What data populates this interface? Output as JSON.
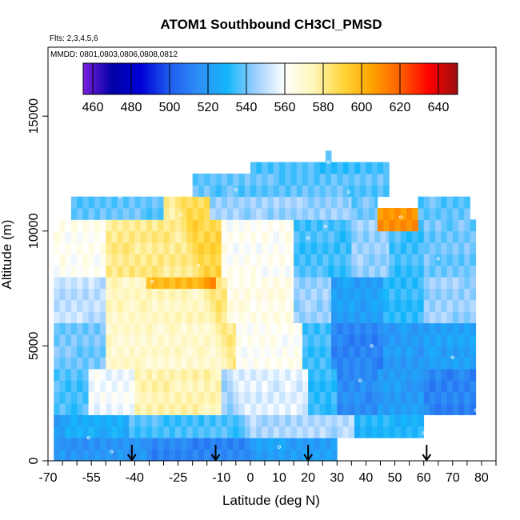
{
  "chart_data": {
    "type": "heatmap",
    "title": "ATOM1 Southbound CH3Cl_PMSD",
    "subtitle_flights": "Flts: 2,3,4,5,6",
    "subtitle_dates": "MMDD: 0801,0803,0806,0808,0812",
    "xlabel": "Latitude (deg N)",
    "ylabel": "Altitude (m)",
    "xlim": [
      -70,
      85
    ],
    "ylim": [
      0,
      18000
    ],
    "x_tick_labels": [
      "-70",
      "-55",
      "-40",
      "-25",
      "-10",
      "0",
      "10",
      "20",
      "30",
      "40",
      "50",
      "60",
      "70",
      "80"
    ],
    "x_tick_values": [
      -70,
      -55,
      -40,
      -25,
      -10,
      0,
      10,
      20,
      30,
      40,
      50,
      60,
      70,
      80
    ],
    "y_tick_labels": [
      "0",
      "5000",
      "10000",
      "15000"
    ],
    "y_tick_values": [
      0,
      5000,
      10000,
      15000
    ],
    "colorbar": {
      "range": [
        455,
        650
      ],
      "tick_labels": [
        "460",
        "480",
        "500",
        "520",
        "540",
        "560",
        "580",
        "600",
        "620",
        "640"
      ],
      "tick_values": [
        460,
        480,
        500,
        520,
        540,
        560,
        580,
        600,
        620,
        640
      ],
      "colors": [
        "#7a1fdd",
        "#0000a6",
        "#0000d6",
        "#1f5cf0",
        "#2e8ef5",
        "#14b6fb",
        "#9ecfff",
        "#ffffff",
        "#fff6b8",
        "#ffd63c",
        "#ffa400",
        "#ff6000",
        "#ff0000",
        "#9a1010"
      ]
    },
    "flight_latitude_markers": [
      -41,
      -12,
      20,
      61
    ],
    "lat_bin_deg": 2,
    "alt_bin_m": 500,
    "grid": [
      {
        "lat": [
          -68,
          -64
        ],
        "alt": [
          0,
          2000
        ],
        "value": 530
      },
      {
        "lat": [
          -64,
          -36
        ],
        "alt": [
          0,
          1000
        ],
        "value": 527
      },
      {
        "lat": [
          -36,
          30
        ],
        "alt": [
          0,
          1000
        ],
        "value": 522
      },
      {
        "lat": [
          -64,
          -42
        ],
        "alt": [
          1000,
          2000
        ],
        "value": 536
      },
      {
        "lat": [
          -42,
          0
        ],
        "alt": [
          1000,
          2000
        ],
        "value": 545
      },
      {
        "lat": [
          0,
          36
        ],
        "alt": [
          1000,
          2000
        ],
        "value": 548
      },
      {
        "lat": [
          36,
          60
        ],
        "alt": [
          1000,
          2000
        ],
        "value": 530
      },
      {
        "lat": [
          -68,
          -56
        ],
        "alt": [
          2000,
          4000
        ],
        "value": 545
      },
      {
        "lat": [
          -56,
          -40
        ],
        "alt": [
          2000,
          4000
        ],
        "value": 568
      },
      {
        "lat": [
          -40,
          -10
        ],
        "alt": [
          2000,
          4000
        ],
        "value": 585
      },
      {
        "lat": [
          -10,
          20
        ],
        "alt": [
          2000,
          4000
        ],
        "value": 555
      },
      {
        "lat": [
          20,
          30
        ],
        "alt": [
          2000,
          4000
        ],
        "value": 532
      },
      {
        "lat": [
          30,
          44
        ],
        "alt": [
          2000,
          4000
        ],
        "value": 515
      },
      {
        "lat": [
          44,
          60
        ],
        "alt": [
          2000,
          4000
        ],
        "value": 520
      },
      {
        "lat": [
          60,
          78
        ],
        "alt": [
          2000,
          4000
        ],
        "value": 512
      },
      {
        "lat": [
          -68,
          -50
        ],
        "alt": [
          4000,
          6000
        ],
        "value": 550
      },
      {
        "lat": [
          -50,
          -5
        ],
        "alt": [
          4000,
          6000
        ],
        "value": 580
      },
      {
        "lat": [
          -5,
          18
        ],
        "alt": [
          4000,
          6000
        ],
        "value": 562
      },
      {
        "lat": [
          18,
          28
        ],
        "alt": [
          4000,
          6000
        ],
        "value": 535
      },
      {
        "lat": [
          28,
          46
        ],
        "alt": [
          4000,
          6000
        ],
        "value": 512
      },
      {
        "lat": [
          46,
          60
        ],
        "alt": [
          4000,
          6000
        ],
        "value": 520
      },
      {
        "lat": [
          60,
          78
        ],
        "alt": [
          4000,
          6000
        ],
        "value": 522
      },
      {
        "lat": [
          -68,
          -50
        ],
        "alt": [
          6000,
          8000
        ],
        "value": 560
      },
      {
        "lat": [
          -50,
          -8
        ],
        "alt": [
          6000,
          8000
        ],
        "value": 582
      },
      {
        "lat": [
          -8,
          15
        ],
        "alt": [
          6000,
          8000
        ],
        "value": 565
      },
      {
        "lat": [
          15,
          28
        ],
        "alt": [
          6000,
          8000
        ],
        "value": 545
      },
      {
        "lat": [
          28,
          46
        ],
        "alt": [
          6000,
          8000
        ],
        "value": 522
      },
      {
        "lat": [
          46,
          60
        ],
        "alt": [
          6000,
          8000
        ],
        "value": 532
      },
      {
        "lat": [
          60,
          78
        ],
        "alt": [
          6000,
          8000
        ],
        "value": 545
      },
      {
        "lat": [
          -36,
          -12
        ],
        "alt": [
          7500,
          8500
        ],
        "value": 608
      },
      {
        "lat": [
          -68,
          -50
        ],
        "alt": [
          8000,
          10500
        ],
        "value": 572
      },
      {
        "lat": [
          -50,
          -10
        ],
        "alt": [
          8000,
          10500
        ],
        "value": 590
      },
      {
        "lat": [
          -10,
          15
        ],
        "alt": [
          8000,
          10500
        ],
        "value": 562
      },
      {
        "lat": [
          15,
          35
        ],
        "alt": [
          8000,
          10500
        ],
        "value": 535
      },
      {
        "lat": [
          35,
          48
        ],
        "alt": [
          8000,
          10500
        ],
        "value": 545
      },
      {
        "lat": [
          48,
          60
        ],
        "alt": [
          8000,
          10500
        ],
        "value": 535
      },
      {
        "lat": [
          60,
          78
        ],
        "alt": [
          8000,
          10500
        ],
        "value": 540
      },
      {
        "lat": [
          -62,
          -30
        ],
        "alt": [
          10500,
          11500
        ],
        "value": 548
      },
      {
        "lat": [
          -30,
          -14
        ],
        "alt": [
          10500,
          11500
        ],
        "value": 588
      },
      {
        "lat": [
          -14,
          35
        ],
        "alt": [
          10500,
          11500
        ],
        "value": 545
      },
      {
        "lat": [
          35,
          44
        ],
        "alt": [
          10500,
          11500
        ],
        "value": 540
      },
      {
        "lat": [
          44,
          58
        ],
        "alt": [
          10000,
          11000
        ],
        "value": 610
      },
      {
        "lat": [
          58,
          76
        ],
        "alt": [
          10500,
          11500
        ],
        "value": 538
      },
      {
        "lat": [
          -20,
          48
        ],
        "alt": [
          11500,
          12500
        ],
        "value": 538
      },
      {
        "lat": [
          0,
          48
        ],
        "alt": [
          12500,
          13000
        ],
        "value": 535
      },
      {
        "lat": [
          26,
          28
        ],
        "alt": [
          13000,
          13500
        ],
        "value": 535
      }
    ],
    "sample_points": [
      {
        "lat": -56,
        "alt": 1000
      },
      {
        "lat": -48,
        "alt": 400
      },
      {
        "lat": -40,
        "alt": 3200
      },
      {
        "lat": -25,
        "alt": 4000
      },
      {
        "lat": -20,
        "alt": 3000
      },
      {
        "lat": -24,
        "alt": 10700
      },
      {
        "lat": -18,
        "alt": 8500
      },
      {
        "lat": -34,
        "alt": 7800
      },
      {
        "lat": 20,
        "alt": 9700
      },
      {
        "lat": 26,
        "alt": 10200
      },
      {
        "lat": 38,
        "alt": 3500
      },
      {
        "lat": 42,
        "alt": 5000
      },
      {
        "lat": 52,
        "alt": 10600
      },
      {
        "lat": 65,
        "alt": 8800
      },
      {
        "lat": 70,
        "alt": 4500
      },
      {
        "lat": 78,
        "alt": 2200
      },
      {
        "lat": 60,
        "alt": 1200
      },
      {
        "lat": 10,
        "alt": 600
      },
      {
        "lat": 27,
        "alt": 13000
      },
      {
        "lat": 34,
        "alt": 11700
      },
      {
        "lat": -5,
        "alt": 11800
      },
      {
        "lat": -45,
        "alt": 11500
      }
    ]
  }
}
